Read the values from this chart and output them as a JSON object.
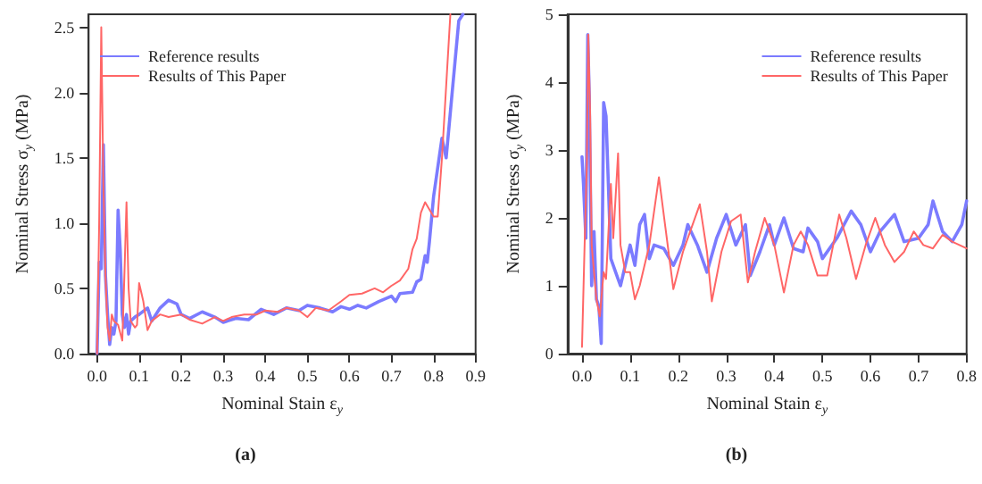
{
  "chart_data": [
    {
      "type": "line",
      "xlabel": "Nominal Stain ε$_{y}$",
      "ylabel": "Nominal Stress σ$_{y}$ (MPa)",
      "annotations": [
        "(a)"
      ],
      "legend": "top left",
      "grid": false,
      "marker": "none",
      "line_style": "solid",
      "xlim": [
        -0.02,
        0.9
      ],
      "xticks": [
        {
          "value": 0,
          "label": "0.0"
        },
        0.1,
        0.2,
        0.3,
        0.4,
        0.5,
        0.6,
        0.7,
        0.8,
        0.9
      ],
      "ylim": [
        0,
        2.6
      ],
      "yticks": [
        {
          "value": 0,
          "label": "0.0"
        },
        0.5,
        {
          "value": 1,
          "label": "1.0"
        },
        1.5,
        {
          "value": 2,
          "label": "2.0"
        },
        2.5
      ],
      "series": [
        {
          "name": "Reference results",
          "color": "#7b7bff",
          "x": [
            0,
            0.005,
            0.01,
            0.015,
            0.02,
            0.025,
            0.03,
            0.035,
            0.04,
            0.045,
            0.05,
            0.055,
            0.06,
            0.065,
            0.07,
            0.075,
            0.08,
            0.09,
            0.1,
            0.12,
            0.13,
            0.15,
            0.17,
            0.19,
            0.2,
            0.22,
            0.25,
            0.28,
            0.3,
            0.33,
            0.36,
            0.39,
            0.42,
            0.45,
            0.48,
            0.5,
            0.53,
            0.56,
            0.58,
            0.6,
            0.62,
            0.64,
            0.67,
            0.7,
            0.71,
            0.72,
            0.75,
            0.76,
            0.77,
            0.78,
            0.785,
            0.79,
            0.8,
            0.82,
            0.83,
            0.85,
            0.86,
            0.87
          ],
          "values": [
            0,
            0.7,
            0.65,
            1.6,
            0.6,
            0.3,
            0.07,
            0.2,
            0.15,
            0.25,
            1.1,
            0.8,
            0.3,
            0.2,
            0.3,
            0.15,
            0.25,
            0.28,
            0.3,
            0.35,
            0.25,
            0.35,
            0.41,
            0.38,
            0.3,
            0.27,
            0.32,
            0.28,
            0.24,
            0.27,
            0.26,
            0.34,
            0.3,
            0.35,
            0.33,
            0.37,
            0.35,
            0.32,
            0.36,
            0.34,
            0.37,
            0.35,
            0.4,
            0.44,
            0.4,
            0.46,
            0.47,
            0.55,
            0.57,
            0.75,
            0.7,
            0.85,
            1.2,
            1.65,
            1.5,
            2.2,
            2.55,
            2.6
          ]
        },
        {
          "name": "Results of This Paper",
          "color": "#ff6666",
          "x": [
            0,
            0.005,
            0.01,
            0.015,
            0.02,
            0.025,
            0.03,
            0.035,
            0.04,
            0.05,
            0.06,
            0.065,
            0.07,
            0.075,
            0.08,
            0.09,
            0.095,
            0.1,
            0.11,
            0.12,
            0.13,
            0.15,
            0.17,
            0.2,
            0.22,
            0.25,
            0.28,
            0.3,
            0.32,
            0.35,
            0.38,
            0.4,
            0.43,
            0.45,
            0.48,
            0.5,
            0.52,
            0.55,
            0.58,
            0.6,
            0.63,
            0.66,
            0.68,
            0.7,
            0.72,
            0.74,
            0.75,
            0.76,
            0.77,
            0.78,
            0.8,
            0.81,
            0.82,
            0.84
          ],
          "values": [
            0,
            1.0,
            2.5,
            1.3,
            0.6,
            0.2,
            0.1,
            0.3,
            0.25,
            0.22,
            0.1,
            0.6,
            1.16,
            0.5,
            0.25,
            0.2,
            0.22,
            0.54,
            0.4,
            0.18,
            0.25,
            0.3,
            0.28,
            0.3,
            0.26,
            0.23,
            0.28,
            0.25,
            0.28,
            0.3,
            0.3,
            0.33,
            0.32,
            0.35,
            0.33,
            0.28,
            0.35,
            0.33,
            0.4,
            0.45,
            0.46,
            0.5,
            0.47,
            0.52,
            0.56,
            0.65,
            0.8,
            0.88,
            1.08,
            1.16,
            1.05,
            1.05,
            1.5,
            2.6
          ]
        }
      ]
    },
    {
      "type": "line",
      "xlabel": "Nominal Stain ε$_{y}$",
      "ylabel": "Nominal Stress σ$_{y}$ (MPa)",
      "annotations": [
        "(b)"
      ],
      "legend": "top right",
      "grid": false,
      "marker": "none",
      "line_style": "solid",
      "xlim": [
        -0.03,
        0.8
      ],
      "xticks": [
        {
          "value": 0,
          "label": "0.0"
        },
        0.1,
        0.2,
        0.3,
        0.4,
        0.5,
        0.6,
        0.7,
        0.8
      ],
      "ylim": [
        0,
        5
      ],
      "yticks": [
        0,
        1,
        2,
        3,
        4,
        5
      ],
      "series": [
        {
          "name": "Reference results",
          "color": "#7b7bff",
          "x": [
            0,
            0.003,
            0.008,
            0.012,
            0.015,
            0.02,
            0.025,
            0.03,
            0.035,
            0.04,
            0.045,
            0.05,
            0.06,
            0.07,
            0.08,
            0.09,
            0.1,
            0.11,
            0.12,
            0.13,
            0.14,
            0.15,
            0.17,
            0.19,
            0.21,
            0.22,
            0.24,
            0.26,
            0.28,
            0.3,
            0.32,
            0.34,
            0.35,
            0.37,
            0.39,
            0.4,
            0.42,
            0.44,
            0.46,
            0.47,
            0.49,
            0.5,
            0.53,
            0.56,
            0.58,
            0.6,
            0.62,
            0.65,
            0.67,
            0.7,
            0.72,
            0.73,
            0.75,
            0.77,
            0.79,
            0.8
          ],
          "values": [
            2.9,
            2.5,
            1.7,
            4.7,
            3.8,
            1.0,
            1.8,
            0.8,
            0.7,
            0.15,
            3.7,
            3.5,
            1.4,
            1.2,
            1.0,
            1.3,
            1.6,
            1.3,
            1.9,
            2.05,
            1.4,
            1.6,
            1.55,
            1.3,
            1.6,
            1.9,
            1.6,
            1.2,
            1.7,
            2.05,
            1.6,
            1.9,
            1.15,
            1.5,
            1.9,
            1.6,
            2.0,
            1.55,
            1.5,
            1.85,
            1.65,
            1.4,
            1.7,
            2.1,
            1.9,
            1.5,
            1.8,
            2.05,
            1.65,
            1.7,
            1.9,
            2.25,
            1.8,
            1.65,
            1.9,
            2.25
          ]
        },
        {
          "name": "Results of This Paper",
          "color": "#ff6666",
          "x": [
            0,
            0.005,
            0.01,
            0.013,
            0.017,
            0.02,
            0.03,
            0.037,
            0.045,
            0.05,
            0.06,
            0.065,
            0.075,
            0.08,
            0.09,
            0.1,
            0.11,
            0.12,
            0.14,
            0.16,
            0.18,
            0.19,
            0.21,
            0.23,
            0.245,
            0.26,
            0.27,
            0.29,
            0.31,
            0.33,
            0.345,
            0.36,
            0.38,
            0.4,
            0.42,
            0.44,
            0.455,
            0.47,
            0.49,
            0.51,
            0.535,
            0.55,
            0.57,
            0.59,
            0.61,
            0.63,
            0.65,
            0.67,
            0.69,
            0.71,
            0.73,
            0.75,
            0.77,
            0.8
          ],
          "values": [
            0.1,
            1.5,
            2.8,
            4.7,
            3.5,
            1.6,
            0.8,
            0.55,
            1.2,
            1.1,
            2.5,
            1.7,
            2.95,
            1.6,
            1.2,
            1.2,
            0.8,
            1.0,
            1.6,
            2.6,
            1.5,
            0.95,
            1.5,
            1.9,
            2.2,
            1.5,
            0.77,
            1.5,
            1.95,
            2.05,
            1.05,
            1.5,
            2.0,
            1.6,
            0.9,
            1.6,
            1.8,
            1.6,
            1.15,
            1.15,
            2.05,
            1.7,
            1.1,
            1.6,
            2.0,
            1.6,
            1.35,
            1.5,
            1.8,
            1.6,
            1.55,
            1.75,
            1.65,
            1.55
          ]
        }
      ]
    }
  ]
}
